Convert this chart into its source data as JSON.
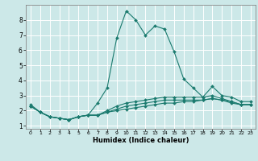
{
  "title": "",
  "xlabel": "Humidex (Indice chaleur)",
  "ylabel": "",
  "xlim": [
    -0.5,
    23.5
  ],
  "ylim": [
    0.8,
    9.0
  ],
  "xticks": [
    0,
    1,
    2,
    3,
    4,
    5,
    6,
    7,
    8,
    9,
    10,
    11,
    12,
    13,
    14,
    15,
    16,
    17,
    18,
    19,
    20,
    21,
    22,
    23
  ],
  "yticks": [
    1,
    2,
    3,
    4,
    5,
    6,
    7,
    8
  ],
  "background_color": "#cce8e8",
  "grid_color": "#ffffff",
  "line_color": "#1a7a6e",
  "lines": [
    {
      "x": [
        0,
        1,
        2,
        3,
        4,
        5,
        6,
        7,
        8,
        9,
        10,
        11,
        12,
        13,
        14,
        15,
        16,
        17,
        18,
        19,
        20,
        21,
        22,
        23
      ],
      "y": [
        2.4,
        1.9,
        1.6,
        1.5,
        1.4,
        1.6,
        1.7,
        2.5,
        3.5,
        6.8,
        8.6,
        8.0,
        7.0,
        7.6,
        7.4,
        5.9,
        4.1,
        3.5,
        2.9,
        3.6,
        3.0,
        2.9,
        2.6,
        2.6
      ]
    },
    {
      "x": [
        0,
        1,
        2,
        3,
        4,
        5,
        6,
        7,
        8,
        9,
        10,
        11,
        12,
        13,
        14,
        15,
        16,
        17,
        18,
        19,
        20,
        21,
        22,
        23
      ],
      "y": [
        2.3,
        1.9,
        1.6,
        1.5,
        1.4,
        1.6,
        1.7,
        1.7,
        2.0,
        2.3,
        2.5,
        2.6,
        2.7,
        2.8,
        2.9,
        2.9,
        2.9,
        2.9,
        2.9,
        3.0,
        2.8,
        2.6,
        2.4,
        2.4
      ]
    },
    {
      "x": [
        0,
        1,
        2,
        3,
        4,
        5,
        6,
        7,
        8,
        9,
        10,
        11,
        12,
        13,
        14,
        15,
        16,
        17,
        18,
        19,
        20,
        21,
        22,
        23
      ],
      "y": [
        2.3,
        1.9,
        1.6,
        1.5,
        1.4,
        1.6,
        1.7,
        1.7,
        1.9,
        2.1,
        2.3,
        2.4,
        2.5,
        2.6,
        2.7,
        2.7,
        2.7,
        2.7,
        2.7,
        2.8,
        2.7,
        2.6,
        2.4,
        2.4
      ]
    },
    {
      "x": [
        0,
        1,
        2,
        3,
        4,
        5,
        6,
        7,
        8,
        9,
        10,
        11,
        12,
        13,
        14,
        15,
        16,
        17,
        18,
        19,
        20,
        21,
        22,
        23
      ],
      "y": [
        2.3,
        1.9,
        1.6,
        1.5,
        1.4,
        1.6,
        1.7,
        1.7,
        1.9,
        2.0,
        2.1,
        2.2,
        2.3,
        2.4,
        2.5,
        2.5,
        2.6,
        2.6,
        2.7,
        2.8,
        2.7,
        2.5,
        2.4,
        2.4
      ]
    }
  ]
}
